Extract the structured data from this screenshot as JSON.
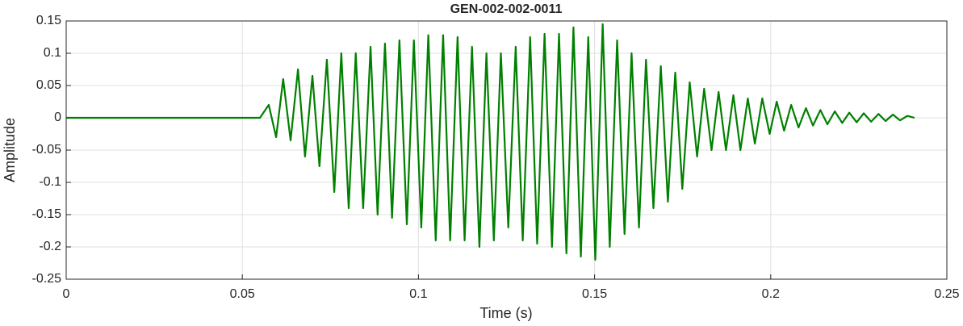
{
  "chart_data": {
    "type": "line",
    "title": "GEN-002-002-0011",
    "xlabel": "Time (s)",
    "ylabel": "Amplitude",
    "color": "#008000",
    "grid": true,
    "xlim": [
      0,
      0.25
    ],
    "xticks": [
      0,
      0.05,
      0.1,
      0.15,
      0.2,
      0.25
    ],
    "ylim": [
      -0.25,
      0.15
    ],
    "yticks": [
      -0.25,
      -0.2,
      -0.15,
      -0.1,
      -0.05,
      0,
      0.05,
      0.1,
      0.15
    ],
    "x": [
      0,
      0.05,
      0.055,
      0.0575,
      0.0596,
      0.0616,
      0.0637,
      0.0658,
      0.0678,
      0.0699,
      0.0719,
      0.074,
      0.0761,
      0.0781,
      0.0802,
      0.0822,
      0.0843,
      0.0864,
      0.0884,
      0.0905,
      0.0925,
      0.0946,
      0.0967,
      0.0987,
      0.1008,
      0.1028,
      0.1049,
      0.107,
      0.109,
      0.1111,
      0.1131,
      0.1152,
      0.1173,
      0.1193,
      0.1214,
      0.1234,
      0.1255,
      0.1276,
      0.1296,
      0.1317,
      0.1337,
      0.1358,
      0.1379,
      0.1399,
      0.142,
      0.144,
      0.1461,
      0.1482,
      0.1502,
      0.1523,
      0.1543,
      0.1564,
      0.1585,
      0.1605,
      0.1626,
      0.1646,
      0.1667,
      0.1688,
      0.1708,
      0.1729,
      0.1749,
      0.177,
      0.1791,
      0.1811,
      0.1832,
      0.1852,
      0.1873,
      0.1894,
      0.1914,
      0.1935,
      0.1955,
      0.1976,
      0.1997,
      0.2017,
      0.2038,
      0.2058,
      0.2079,
      0.21,
      0.212,
      0.2141,
      0.2161,
      0.2182,
      0.2203,
      0.2223,
      0.2244,
      0.2264,
      0.2285,
      0.2306,
      0.2326,
      0.2347,
      0.2367,
      0.2388,
      0.2408
    ],
    "values": [
      0,
      0,
      0,
      0.02,
      -0.03,
      0.06,
      -0.035,
      0.075,
      -0.06,
      0.065,
      -0.075,
      0.09,
      -0.115,
      0.1,
      -0.14,
      0.1,
      -0.14,
      0.11,
      -0.15,
      0.115,
      -0.155,
      0.12,
      -0.165,
      0.12,
      -0.17,
      0.128,
      -0.19,
      0.128,
      -0.19,
      0.125,
      -0.19,
      0.11,
      -0.2,
      0.1,
      -0.19,
      0.1,
      -0.17,
      0.11,
      -0.19,
      0.125,
      -0.195,
      0.13,
      -0.2,
      0.13,
      -0.21,
      0.14,
      -0.215,
      0.125,
      -0.22,
      0.145,
      -0.2,
      0.12,
      -0.18,
      0.1,
      -0.17,
      0.09,
      -0.14,
      0.08,
      -0.13,
      0.07,
      -0.11,
      0.055,
      -0.06,
      0.045,
      -0.05,
      0.04,
      -0.05,
      0.035,
      -0.05,
      0.03,
      -0.04,
      0.03,
      -0.025,
      0.025,
      -0.02,
      0.02,
      -0.015,
      0.015,
      -0.012,
      0.012,
      -0.01,
      0.01,
      -0.008,
      0.008,
      -0.007,
      0.007,
      -0.006,
      0.006,
      -0.005,
      0.005,
      -0.004,
      0.003,
      0
    ]
  }
}
